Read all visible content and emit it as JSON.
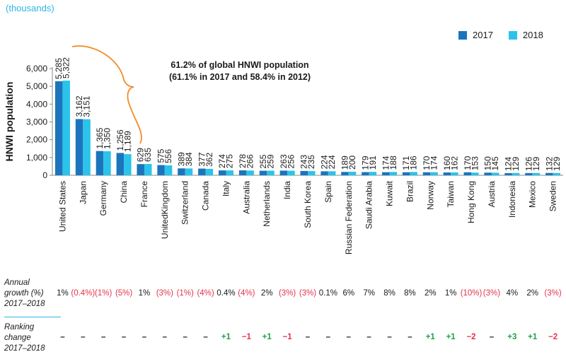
{
  "colors": {
    "s2017": "#1c75bc",
    "s2018": "#2bc3ea",
    "axis": "#888888",
    "brace": "#f28c28"
  },
  "units_label": "(thousands)",
  "annotation": {
    "line1": "61.2% of global HNWI population",
    "line2": "(61.1% in 2017 and 58.4% in 2012)"
  },
  "table": {
    "growth_label": [
      "Annual",
      "growth (%)",
      "2017–2018"
    ],
    "ranking_label": [
      "Ranking",
      "change",
      "2017–2018"
    ],
    "growth": [
      "1%",
      "(0.4%)",
      "(1%)",
      "(5%)",
      "1%",
      "(3%)",
      "(1%)",
      "(4%)",
      "0.4%",
      "(4%)",
      "2%",
      "(3%)",
      "(3%)",
      "0.1%",
      "6%",
      "7%",
      "8%",
      "8%",
      "2%",
      "1%",
      "(10%)",
      "(3%)",
      "4%",
      "2%",
      "(3%)"
    ],
    "ranking": [
      "–",
      "–",
      "–",
      "–",
      "–",
      "–",
      "–",
      "–",
      "+1",
      "−1",
      "+1",
      "−1",
      "–",
      "–",
      "–",
      "–",
      "–",
      "–",
      "+1",
      "+1",
      "−2",
      "–",
      "+3",
      "+1",
      "−2"
    ]
  },
  "chart_data": {
    "type": "bar",
    "title": "",
    "xlabel": "",
    "ylabel": "HNWI population",
    "ylim": [
      0,
      6000
    ],
    "yticks": [
      "0",
      "1,000",
      "2,000",
      "3,000",
      "4,000",
      "5,000",
      "6,000"
    ],
    "legend_position": "top-right",
    "categories": [
      "United States",
      "Japan",
      "Germany",
      "China",
      "France",
      "UnitedKingdom",
      "Switzerland",
      "Canada",
      "Italy",
      "Australia",
      "Netherlands",
      "India",
      "South Korea",
      "Spain",
      "Russian Federation",
      "Saudi Arabia",
      "Kuwait",
      "Brazil",
      "Norway",
      "Taiwan",
      "Hong Kong",
      "Austria",
      "Indonesia",
      "Mexico",
      "Sweden"
    ],
    "series": [
      {
        "name": "2017",
        "values": [
          5285,
          3162,
          1365,
          1256,
          629,
          575,
          389,
          377,
          274,
          278,
          255,
          263,
          243,
          224,
          189,
          179,
          174,
          171,
          170,
          160,
          170,
          150,
          124,
          126,
          132
        ],
        "labels": [
          "5,285",
          "3,162",
          "1,365",
          "1,256",
          "629",
          "575",
          "389",
          "377",
          "274",
          "278",
          "255",
          "263",
          "243",
          "224",
          "189",
          "179",
          "174",
          "171",
          "170",
          "160",
          "170",
          "150",
          "124",
          "126",
          "132"
        ]
      },
      {
        "name": "2018",
        "values": [
          5322,
          3151,
          1350,
          1189,
          635,
          556,
          384,
          362,
          275,
          266,
          259,
          256,
          235,
          224,
          200,
          191,
          188,
          186,
          174,
          162,
          153,
          145,
          129,
          129,
          129
        ],
        "labels": [
          "5,322",
          "3,151",
          "1,350",
          "1,189",
          "635",
          "556",
          "384",
          "362",
          "275",
          "266",
          "259",
          "256",
          "235",
          "224",
          "200",
          "191",
          "188",
          "186",
          "174",
          "162",
          "153",
          "145",
          "129",
          "129",
          "129"
        ]
      }
    ]
  }
}
